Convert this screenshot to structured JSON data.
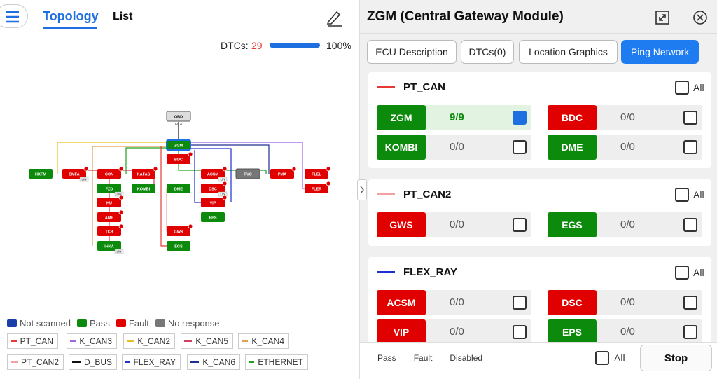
{
  "header": {
    "tabs": [
      "Topology",
      "List"
    ]
  },
  "dtc": {
    "label": "DTCs:",
    "count": "29",
    "percent": "100%"
  },
  "topology": {
    "obd_ratio": "6/14",
    "lin_label": "LIN",
    "nodes": [
      {
        "name": "OBD",
        "status": "no_response"
      },
      {
        "name": "ZGM",
        "status": "pass"
      },
      {
        "name": "BDC",
        "status": "fault"
      },
      {
        "name": "HKFM",
        "status": "pass"
      },
      {
        "name": "SMFA",
        "status": "fault"
      },
      {
        "name": "CON",
        "status": "fault"
      },
      {
        "name": "KAFAS",
        "status": "fault"
      },
      {
        "name": "ACSM",
        "status": "fault"
      },
      {
        "name": "RVC",
        "status": "no_response"
      },
      {
        "name": "PMA",
        "status": "fault"
      },
      {
        "name": "FLEL",
        "status": "fault"
      },
      {
        "name": "FZD",
        "status": "pass"
      },
      {
        "name": "KOMBI",
        "status": "pass"
      },
      {
        "name": "DME",
        "status": "pass"
      },
      {
        "name": "DSC",
        "status": "fault"
      },
      {
        "name": "FLER",
        "status": "fault"
      },
      {
        "name": "HU",
        "status": "fault"
      },
      {
        "name": "VIP",
        "status": "fault"
      },
      {
        "name": "AMP",
        "status": "fault"
      },
      {
        "name": "EPS",
        "status": "pass"
      },
      {
        "name": "TCB",
        "status": "fault"
      },
      {
        "name": "GWS",
        "status": "fault"
      },
      {
        "name": "IHKA",
        "status": "pass"
      },
      {
        "name": "EGS",
        "status": "pass"
      }
    ]
  },
  "status_colors": {
    "not_scanned": "#1a3fa8",
    "pass": "#0b8a0b",
    "fault": "#e00000",
    "no_response": "#777777"
  },
  "status_legend": [
    {
      "label": "Not scanned",
      "status": "not_scanned"
    },
    {
      "label": "Pass",
      "status": "pass"
    },
    {
      "label": "Fault",
      "status": "fault"
    },
    {
      "label": "No response",
      "status": "no_response"
    }
  ],
  "buses": [
    {
      "name": "PT_CAN",
      "color": "#e53935"
    },
    {
      "name": "K_CAN3",
      "color": "#a066e0"
    },
    {
      "name": "K_CAN2",
      "color": "#e8c020"
    },
    {
      "name": "K_CAN5",
      "color": "#d04060"
    },
    {
      "name": "K_CAN4",
      "color": "#e0a050"
    },
    {
      "name": "PT_CAN2",
      "color": "#f4a0a0"
    },
    {
      "name": "D_BUS",
      "color": "#111111"
    },
    {
      "name": "FLEX_RAY",
      "color": "#2030d0"
    },
    {
      "name": "K_CAN6",
      "color": "#203090"
    },
    {
      "name": "ETHERNET",
      "color": "#20a020"
    }
  ],
  "panel": {
    "title": "ZGM (Central Gateway Module)",
    "tabs": [
      "ECU Description",
      "DTCs(0)",
      "Location Graphics",
      "Ping Network"
    ],
    "active_tab": 3,
    "all_label": "All",
    "sections": [
      {
        "name": "PT_CAN",
        "color": "#e53935",
        "ecus": [
          {
            "name": "ZGM",
            "status": "pass",
            "count": "9/9",
            "checked": true
          },
          {
            "name": "BDC",
            "status": "fault",
            "count": "0/0",
            "checked": false
          },
          {
            "name": "KOMBI",
            "status": "pass",
            "count": "0/0",
            "checked": false
          },
          {
            "name": "DME",
            "status": "pass",
            "count": "0/0",
            "checked": false
          }
        ]
      },
      {
        "name": "PT_CAN2",
        "color": "#f4a0a0",
        "ecus": [
          {
            "name": "GWS",
            "status": "fault",
            "count": "0/0",
            "checked": false
          },
          {
            "name": "EGS",
            "status": "pass",
            "count": "0/0",
            "checked": false
          }
        ]
      },
      {
        "name": "FLEX_RAY",
        "color": "#2030d0",
        "ecus": [
          {
            "name": "ACSM",
            "status": "fault",
            "count": "0/0",
            "checked": false
          },
          {
            "name": "DSC",
            "status": "fault",
            "count": "0/0",
            "checked": false
          },
          {
            "name": "VIP",
            "status": "fault",
            "count": "0/0",
            "checked": false
          },
          {
            "name": "EPS",
            "status": "pass",
            "count": "0/0",
            "checked": false
          }
        ]
      }
    ]
  },
  "footer": {
    "legend": [
      {
        "label": "Pass",
        "status": "pass"
      },
      {
        "label": "Fault",
        "status": "fault"
      },
      {
        "label": "Disabled",
        "status": "disabled"
      }
    ],
    "all_label": "All",
    "stop": "Stop"
  }
}
